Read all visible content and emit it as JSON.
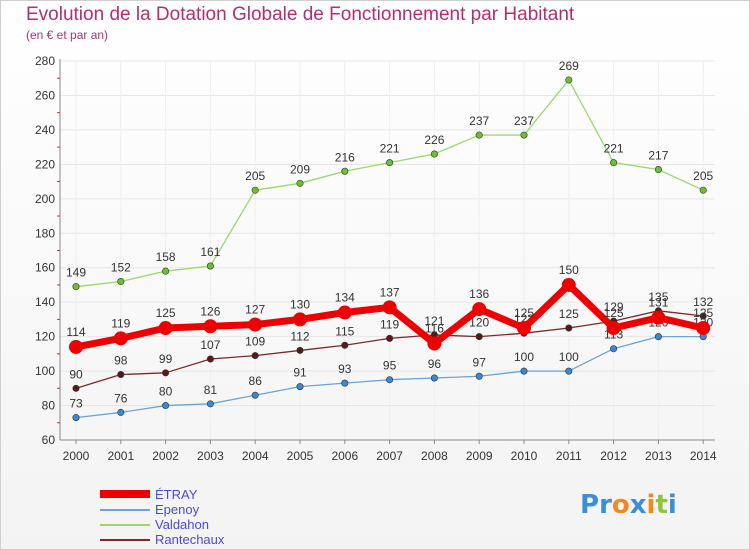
{
  "title": "Evolution de la Dotation Globale de Fonctionnement par Habitant",
  "subtitle": "(en € et par an)",
  "logo": {
    "text": "Proxiti",
    "letters": [
      "P",
      "r",
      "o",
      "x",
      "i",
      "t",
      "i"
    ],
    "colors": [
      "#3a8fd8",
      "#3a8fd8",
      "#f08a1e",
      "#3a8fd8",
      "#f08a1e",
      "#8cc83c",
      "#3a8fd8"
    ]
  },
  "chart_data": {
    "type": "line",
    "title": "Evolution de la Dotation Globale de Fonctionnement par Habitant",
    "subtitle": "(en € et par an)",
    "x": [
      2000,
      2001,
      2002,
      2003,
      2004,
      2005,
      2006,
      2007,
      2008,
      2009,
      2010,
      2011,
      2012,
      2013,
      2014
    ],
    "ylim": [
      60,
      280
    ],
    "yticks": [
      60,
      80,
      100,
      120,
      140,
      160,
      180,
      200,
      220,
      240,
      260,
      280
    ],
    "grid": true,
    "legend_position": "bottom-left",
    "series": [
      {
        "name": "Valdahon",
        "color": "#9ad870",
        "marker": "#6cc030",
        "highlight": false,
        "values": [
          149,
          152,
          158,
          161,
          205,
          209,
          216,
          221,
          226,
          237,
          237,
          269,
          221,
          217,
          205
        ]
      },
      {
        "name": "Rantechaux",
        "color": "#7a2a2a",
        "marker": "#5a1818",
        "highlight": false,
        "values": [
          90,
          98,
          99,
          107,
          109,
          112,
          115,
          119,
          121,
          120,
          122,
          125,
          129,
          135,
          132
        ]
      },
      {
        "name": "Epenoy",
        "color": "#6aa4d8",
        "marker": "#3a88d0",
        "highlight": false,
        "values": [
          73,
          76,
          80,
          81,
          86,
          91,
          93,
          95,
          96,
          97,
          100,
          100,
          113,
          120,
          120
        ]
      },
      {
        "name": "ÉTRAY",
        "color": "#ee0000",
        "marker": "#ee0000",
        "highlight": true,
        "values": [
          114,
          119,
          125,
          126,
          127,
          130,
          134,
          137,
          116,
          136,
          125,
          150,
          125,
          131,
          125
        ]
      }
    ],
    "legend_order": [
      "ÉTRAY",
      "Epenoy",
      "Valdahon",
      "Rantechaux"
    ]
  }
}
